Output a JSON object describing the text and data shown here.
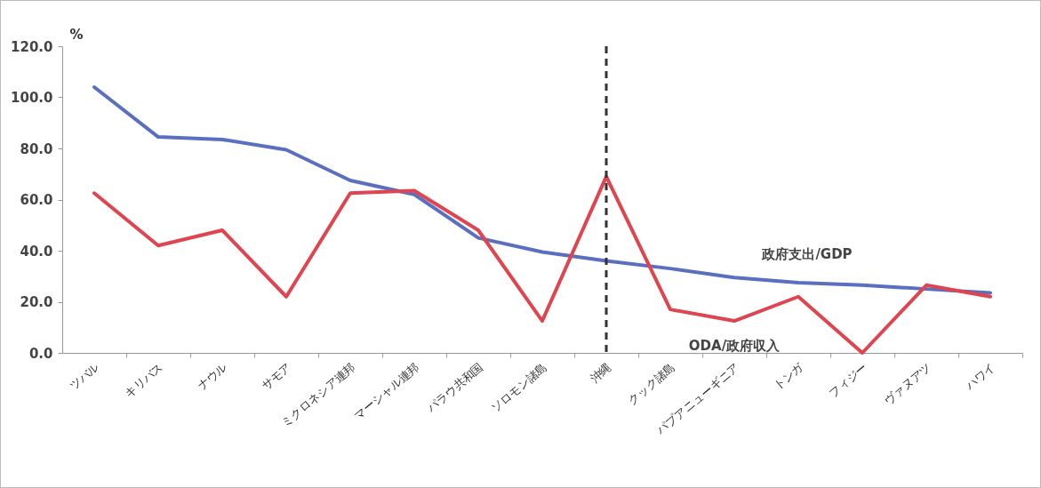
{
  "chart_data": {
    "type": "line",
    "ylabel": "%",
    "categories": [
      "ツバル",
      "キリバス",
      "ナウル",
      "サモア",
      "ミクロネシア連邦",
      "マーシャル連邦",
      "パラウ共和国",
      "ソロモン諸島",
      "沖縄",
      "クック諸島",
      "パプアニューギニア",
      "トンガ",
      "フィジー",
      "ヴァヌアツ",
      "ハワイ"
    ],
    "series": [
      {
        "name": "政府支出/GDP",
        "color": "#5a6fc0",
        "values": [
          104,
          84.5,
          83.5,
          79.5,
          67.5,
          62,
          45,
          39.5,
          36,
          33,
          29.5,
          27.5,
          26.5,
          25,
          23.5
        ]
      },
      {
        "name": "ODA/政府収入",
        "color": "#e0454f",
        "values": [
          62.5,
          42,
          48,
          22,
          62.5,
          63.5,
          48,
          12.5,
          69,
          17,
          12.5,
          22,
          0,
          26.5,
          22
        ]
      }
    ],
    "ylim": [
      0,
      120
    ],
    "yticks": [
      {
        "value": 0,
        "label": "0.0"
      },
      {
        "value": 20,
        "label": "20.0"
      },
      {
        "value": 40,
        "label": "40.0"
      },
      {
        "value": 60,
        "label": "60.0"
      },
      {
        "value": 80,
        "label": "80.0"
      },
      {
        "value": 100,
        "label": "100.0"
      },
      {
        "value": 120,
        "label": "120.0"
      }
    ],
    "ref_lines": [
      {
        "axis": "x",
        "value": "沖縄",
        "color": "#333333",
        "line_style": "dashed"
      }
    ],
    "grid": false,
    "legend": false,
    "line_style": "solid",
    "marker": "none"
  }
}
